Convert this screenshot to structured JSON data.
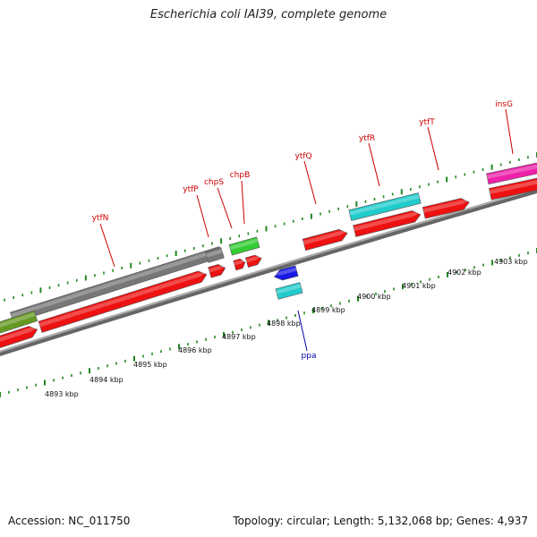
{
  "title": "Escherichia coli IAI39, complete genome",
  "footer": {
    "accession": "Accession: NC_011750",
    "summary": "Topology: circular; Length: 5,132,068 bp; Genes: 4,937"
  },
  "colors": {
    "forward_cds": "#ee1111",
    "reverse_cds": "#1a1ae6",
    "teal": "#22cccc",
    "gray": "#777777",
    "green": "#33cc33",
    "olive": "#669922",
    "magenta": "#ee22aa",
    "tick": "#228822",
    "label_red": "#cc0000",
    "label_blue": "#0000aa"
  },
  "kbp_labels": [
    "4893 kbp",
    "4894 kbp",
    "4895 kbp",
    "4896 kbp",
    "4897 kbp",
    "4898 kbp",
    "4899 kbp",
    "4900 kbp",
    "4901 kbp",
    "4902 kbp",
    "4903 kbp"
  ],
  "gene_labels": [
    {
      "id": "ytfN",
      "text": "ytfN",
      "color": "label_red"
    },
    {
      "id": "ytfP",
      "text": "ytfP",
      "color": "label_red"
    },
    {
      "id": "chpS",
      "text": "chpS",
      "color": "label_red"
    },
    {
      "id": "chpB",
      "text": "chpB",
      "color": "label_red"
    },
    {
      "id": "ytfQ",
      "text": "ytfQ",
      "color": "label_red"
    },
    {
      "id": "ytfR",
      "text": "ytfR",
      "color": "label_red"
    },
    {
      "id": "ytfT",
      "text": "ytfT",
      "color": "label_red"
    },
    {
      "id": "insG",
      "text": "insG",
      "color": "label_red"
    },
    {
      "id": "ppa",
      "text": "ppa",
      "color": "label_blue"
    }
  ]
}
